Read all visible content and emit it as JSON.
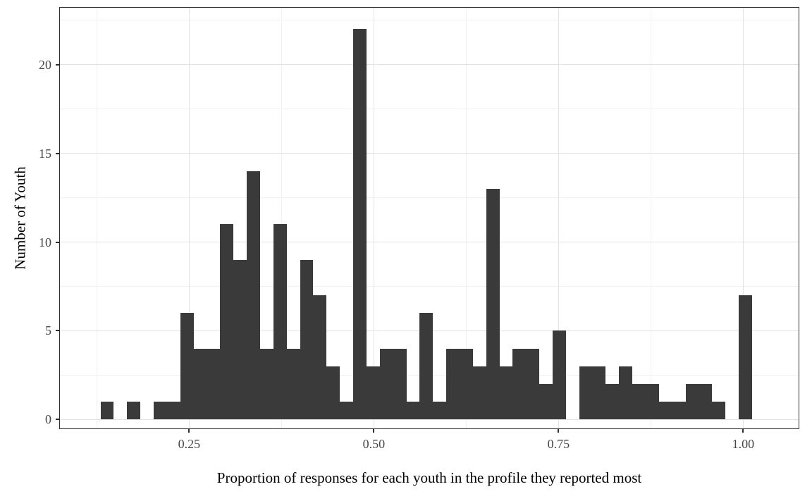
{
  "chart_data": {
    "type": "bar",
    "subtype": "histogram",
    "title": "",
    "xlabel": "Proportion of responses for each youth in the profile they reported most",
    "ylabel": "Number of Youth",
    "xlim": [
      0.075,
      1.075
    ],
    "ylim": [
      -0.5,
      23.2
    ],
    "grid": true,
    "legend": false,
    "bin_width": 0.018,
    "x_ticks": [
      {
        "value": 0.25,
        "label": "0.25"
      },
      {
        "value": 0.5,
        "label": "0.50"
      },
      {
        "value": 0.75,
        "label": "0.75"
      },
      {
        "value": 1.0,
        "label": "1.00"
      }
    ],
    "y_ticks": [
      {
        "value": 0,
        "label": "0"
      },
      {
        "value": 5,
        "label": "5"
      },
      {
        "value": 10,
        "label": "10"
      },
      {
        "value": 15,
        "label": "15"
      },
      {
        "value": 20,
        "label": "20"
      }
    ],
    "x_minor_gridlines": [
      0.125,
      0.375,
      0.625,
      0.875
    ],
    "y_minor_gridlines": [
      2.5,
      7.5,
      12.5,
      17.5,
      22.5
    ],
    "bins": [
      {
        "start": 0.13,
        "count": 1
      },
      {
        "start": 0.148,
        "count": 0
      },
      {
        "start": 0.166,
        "count": 1
      },
      {
        "start": 0.184,
        "count": 0
      },
      {
        "start": 0.202,
        "count": 1
      },
      {
        "start": 0.22,
        "count": 1
      },
      {
        "start": 0.238,
        "count": 6
      },
      {
        "start": 0.256,
        "count": 4
      },
      {
        "start": 0.274,
        "count": 4
      },
      {
        "start": 0.292,
        "count": 11
      },
      {
        "start": 0.31,
        "count": 9
      },
      {
        "start": 0.328,
        "count": 14
      },
      {
        "start": 0.346,
        "count": 4
      },
      {
        "start": 0.364,
        "count": 11
      },
      {
        "start": 0.382,
        "count": 4
      },
      {
        "start": 0.4,
        "count": 9
      },
      {
        "start": 0.418,
        "count": 7
      },
      {
        "start": 0.436,
        "count": 3
      },
      {
        "start": 0.454,
        "count": 1
      },
      {
        "start": 0.472,
        "count": 22
      },
      {
        "start": 0.49,
        "count": 3
      },
      {
        "start": 0.508,
        "count": 4
      },
      {
        "start": 0.526,
        "count": 4
      },
      {
        "start": 0.544,
        "count": 1
      },
      {
        "start": 0.562,
        "count": 6
      },
      {
        "start": 0.58,
        "count": 1
      },
      {
        "start": 0.598,
        "count": 4
      },
      {
        "start": 0.616,
        "count": 4
      },
      {
        "start": 0.634,
        "count": 3
      },
      {
        "start": 0.652,
        "count": 13
      },
      {
        "start": 0.67,
        "count": 3
      },
      {
        "start": 0.688,
        "count": 4
      },
      {
        "start": 0.706,
        "count": 4
      },
      {
        "start": 0.724,
        "count": 2
      },
      {
        "start": 0.742,
        "count": 5
      },
      {
        "start": 0.76,
        "count": 0
      },
      {
        "start": 0.778,
        "count": 3
      },
      {
        "start": 0.796,
        "count": 3
      },
      {
        "start": 0.814,
        "count": 2
      },
      {
        "start": 0.832,
        "count": 3
      },
      {
        "start": 0.85,
        "count": 2
      },
      {
        "start": 0.868,
        "count": 2
      },
      {
        "start": 0.886,
        "count": 1
      },
      {
        "start": 0.904,
        "count": 1
      },
      {
        "start": 0.922,
        "count": 2
      },
      {
        "start": 0.94,
        "count": 2
      },
      {
        "start": 0.958,
        "count": 1
      },
      {
        "start": 0.976,
        "count": 0
      },
      {
        "start": 0.994,
        "count": 7
      }
    ],
    "colors": {
      "bar": "#3a3a3a",
      "grid_major": "#e3e3e3",
      "grid_minor": "#f1f1f1",
      "panel_border": "#2e2e2e",
      "tick": "#2e2e2e",
      "tick_label": "#474747",
      "axis_title": "#000000",
      "background": "#ffffff"
    }
  }
}
